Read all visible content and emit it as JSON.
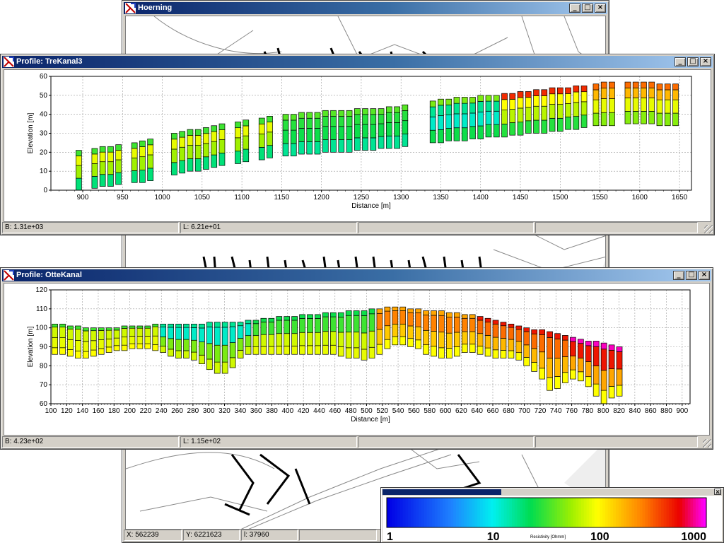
{
  "map_window": {
    "title": "Hoerning",
    "status": {
      "x": "X: 562239",
      "y": "Y: 6221623",
      "l": "l: 37960"
    }
  },
  "profile1": {
    "title": "Profile: TreKanal3",
    "ylabel": "Elevation [m]",
    "xlabel": "Distance [m]",
    "status": {
      "b": "B: 1.31e+03",
      "l": "L: 6.21e+01"
    }
  },
  "profile2": {
    "title": "Profile: OtteKanal",
    "ylabel": "Elevation [m]",
    "xlabel": "Distance [m]",
    "status": {
      "b": "B: 4.23e+02",
      "l": "L: 1.15e+02"
    }
  },
  "legend": {
    "label": "Resistivity [Ohmm]",
    "ticks": [
      "1",
      "10",
      "100",
      "1000"
    ],
    "tick_log": [
      0,
      1,
      2,
      3
    ]
  },
  "colors": {
    "window_face": "#d4d0c8",
    "title_active": "#0a246a",
    "map_line": "#888888",
    "map_feature": "#000000"
  },
  "icons": {
    "window": "app-window-icon",
    "minimize": "minimize-icon",
    "maximize": "maximize-icon",
    "close": "close-icon"
  },
  "chart_data": [
    {
      "type": "bar",
      "title": "",
      "xlabel": "Distance [m]",
      "ylabel": "Elevation [m]",
      "xlim": [
        860,
        1665
      ],
      "ylim": [
        0,
        60
      ],
      "xticks": [
        900,
        950,
        1000,
        1050,
        1100,
        1150,
        1200,
        1250,
        1300,
        1350,
        1400,
        1450,
        1500,
        1550,
        1600,
        1650
      ],
      "yticks": [
        0,
        10,
        20,
        30,
        40,
        50,
        60
      ],
      "grid": true,
      "legend": "none",
      "note": "columns of resistivity layers; each column lists distance, layer bottom/top elevations and log10 resistivity",
      "columns": [
        {
          "x": 895,
          "top": 21,
          "bottom": 0
        },
        {
          "x": 915,
          "top": 22,
          "bottom": 1
        },
        {
          "x": 925,
          "top": 23,
          "bottom": 2
        },
        {
          "x": 935,
          "top": 23,
          "bottom": 2
        },
        {
          "x": 945,
          "top": 24,
          "bottom": 3
        },
        {
          "x": 965,
          "top": 25,
          "bottom": 4
        },
        {
          "x": 975,
          "top": 26,
          "bottom": 4
        },
        {
          "x": 985,
          "top": 27,
          "bottom": 5
        },
        {
          "x": 1015,
          "top": 30,
          "bottom": 8
        },
        {
          "x": 1025,
          "top": 31,
          "bottom": 9
        },
        {
          "x": 1035,
          "top": 32,
          "bottom": 10
        },
        {
          "x": 1045,
          "top": 32,
          "bottom": 10
        },
        {
          "x": 1055,
          "top": 33,
          "bottom": 11
        },
        {
          "x": 1065,
          "top": 34,
          "bottom": 12
        },
        {
          "x": 1075,
          "top": 35,
          "bottom": 13
        },
        {
          "x": 1095,
          "top": 36,
          "bottom": 14
        },
        {
          "x": 1105,
          "top": 37,
          "bottom": 15
        },
        {
          "x": 1125,
          "top": 38,
          "bottom": 16
        },
        {
          "x": 1135,
          "top": 39,
          "bottom": 17
        },
        {
          "x": 1155,
          "top": 40,
          "bottom": 18
        },
        {
          "x": 1165,
          "top": 40,
          "bottom": 18
        },
        {
          "x": 1175,
          "top": 41,
          "bottom": 19
        },
        {
          "x": 1185,
          "top": 41,
          "bottom": 19
        },
        {
          "x": 1195,
          "top": 41,
          "bottom": 19
        },
        {
          "x": 1205,
          "top": 42,
          "bottom": 20
        },
        {
          "x": 1215,
          "top": 42,
          "bottom": 20
        },
        {
          "x": 1225,
          "top": 42,
          "bottom": 20
        },
        {
          "x": 1235,
          "top": 42,
          "bottom": 20
        },
        {
          "x": 1245,
          "top": 43,
          "bottom": 21
        },
        {
          "x": 1255,
          "top": 43,
          "bottom": 21
        },
        {
          "x": 1265,
          "top": 43,
          "bottom": 21
        },
        {
          "x": 1275,
          "top": 43,
          "bottom": 22
        },
        {
          "x": 1285,
          "top": 44,
          "bottom": 22
        },
        {
          "x": 1295,
          "top": 44,
          "bottom": 22
        },
        {
          "x": 1305,
          "top": 45,
          "bottom": 23
        },
        {
          "x": 1340,
          "top": 47,
          "bottom": 25
        },
        {
          "x": 1350,
          "top": 48,
          "bottom": 25
        },
        {
          "x": 1360,
          "top": 48,
          "bottom": 26
        },
        {
          "x": 1370,
          "top": 49,
          "bottom": 26
        },
        {
          "x": 1380,
          "top": 49,
          "bottom": 26
        },
        {
          "x": 1390,
          "top": 49,
          "bottom": 27
        },
        {
          "x": 1400,
          "top": 50,
          "bottom": 27
        },
        {
          "x": 1410,
          "top": 50,
          "bottom": 28
        },
        {
          "x": 1420,
          "top": 50,
          "bottom": 28
        },
        {
          "x": 1430,
          "top": 51,
          "bottom": 28
        },
        {
          "x": 1440,
          "top": 51,
          "bottom": 29
        },
        {
          "x": 1450,
          "top": 52,
          "bottom": 29
        },
        {
          "x": 1460,
          "top": 52,
          "bottom": 30
        },
        {
          "x": 1470,
          "top": 53,
          "bottom": 30
        },
        {
          "x": 1480,
          "top": 53,
          "bottom": 30
        },
        {
          "x": 1490,
          "top": 54,
          "bottom": 31
        },
        {
          "x": 1500,
          "top": 54,
          "bottom": 31
        },
        {
          "x": 1510,
          "top": 54,
          "bottom": 32
        },
        {
          "x": 1520,
          "top": 55,
          "bottom": 32
        },
        {
          "x": 1530,
          "top": 55,
          "bottom": 33
        },
        {
          "x": 1545,
          "top": 56,
          "bottom": 34
        },
        {
          "x": 1555,
          "top": 57,
          "bottom": 34
        },
        {
          "x": 1565,
          "top": 57,
          "bottom": 34
        },
        {
          "x": 1585,
          "top": 57,
          "bottom": 35
        },
        {
          "x": 1595,
          "top": 57,
          "bottom": 35
        },
        {
          "x": 1605,
          "top": 57,
          "bottom": 35
        },
        {
          "x": 1615,
          "top": 57,
          "bottom": 35
        },
        {
          "x": 1625,
          "top": 56,
          "bottom": 34
        },
        {
          "x": 1635,
          "top": 56,
          "bottom": 34
        },
        {
          "x": 1645,
          "top": 56,
          "bottom": 34
        }
      ]
    },
    {
      "type": "bar",
      "title": "",
      "xlabel": "Distance [m]",
      "ylabel": "Elevation [m]",
      "xlim": [
        100,
        910
      ],
      "ylim": [
        60,
        120
      ],
      "xticks": [
        100,
        120,
        140,
        160,
        180,
        200,
        220,
        240,
        260,
        280,
        300,
        320,
        340,
        360,
        380,
        400,
        420,
        440,
        460,
        480,
        500,
        520,
        540,
        560,
        580,
        600,
        620,
        640,
        660,
        680,
        700,
        720,
        740,
        760,
        780,
        800,
        820,
        840,
        860,
        880,
        900
      ],
      "yticks": [
        60,
        70,
        80,
        90,
        100,
        110,
        120
      ],
      "grid": true,
      "legend": "none",
      "note": "columns of resistivity layers",
      "columns_x_start": 105,
      "columns_x_step": 9.8,
      "column_tops": [
        102,
        102,
        101,
        101,
        100,
        100,
        100,
        100,
        100,
        101,
        101,
        101,
        101,
        102,
        102,
        102,
        102,
        102,
        102,
        102,
        103,
        103,
        103,
        103,
        103,
        104,
        104,
        105,
        105,
        106,
        106,
        106,
        107,
        107,
        107,
        108,
        108,
        108,
        109,
        109,
        109,
        110,
        110,
        111,
        111,
        111,
        110,
        110,
        109,
        109,
        109,
        108,
        108,
        107,
        107,
        106,
        105,
        104,
        103,
        102,
        101,
        100,
        99,
        99,
        98,
        97,
        96,
        95,
        94,
        93,
        93,
        92,
        91,
        90
      ],
      "column_bottoms": [
        86,
        86,
        85,
        84,
        84,
        85,
        86,
        87,
        88,
        88,
        89,
        89,
        89,
        88,
        87,
        85,
        84,
        84,
        83,
        81,
        78,
        76,
        76,
        79,
        84,
        86,
        86,
        86,
        86,
        86,
        86,
        86,
        86,
        86,
        86,
        86,
        86,
        85,
        84,
        84,
        83,
        84,
        86,
        89,
        91,
        91,
        90,
        89,
        86,
        85,
        84,
        84,
        85,
        87,
        87,
        86,
        85,
        84,
        84,
        84,
        83,
        80,
        77,
        73,
        67,
        68,
        71,
        73,
        72,
        69,
        64,
        60,
        63,
        64
      ]
    }
  ]
}
